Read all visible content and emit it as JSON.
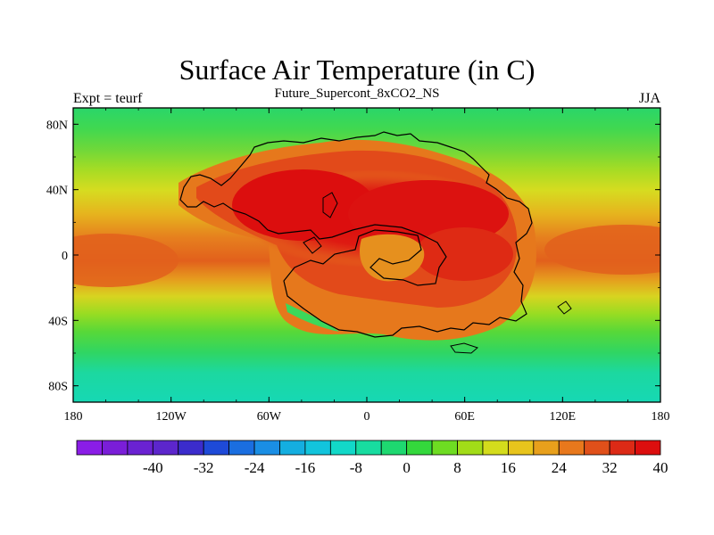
{
  "title": "Surface Air Temperature (in C)",
  "subtitle": "Future_Supercont_8xCO2_NS",
  "left_label": "Expt = teurf",
  "right_label": "JJA",
  "map": {
    "lon_ticks": [
      "180",
      "120W",
      "60W",
      "0",
      "60E",
      "120E",
      "180"
    ],
    "lon_values": [
      -180,
      -120,
      -60,
      0,
      60,
      120,
      180
    ],
    "lat_ticks": [
      "80N",
      "40N",
      "0",
      "40S",
      "80S"
    ],
    "lat_values": [
      80,
      40,
      0,
      -40,
      -80
    ],
    "lon_range": [
      -180,
      180
    ],
    "lat_range": [
      -90,
      90
    ]
  },
  "colorbar": {
    "colors": [
      "#8a1de6",
      "#7a1ed8",
      "#6a22d2",
      "#5c26cc",
      "#3b2ccc",
      "#1e4ad8",
      "#1a6ee0",
      "#1a8ee4",
      "#14aee0",
      "#12c4dc",
      "#12d8c8",
      "#18dca0",
      "#1ed870",
      "#34d83c",
      "#6edc22",
      "#a2dc18",
      "#d4dc1c",
      "#e8c41c",
      "#e8a01c",
      "#e8781c",
      "#e0501a",
      "#dc2a16",
      "#dc0e0e"
    ],
    "labels": [
      "-40",
      "-32",
      "-24",
      "-16",
      "-8",
      "0",
      "8",
      "16",
      "24",
      "32",
      "40"
    ]
  }
}
